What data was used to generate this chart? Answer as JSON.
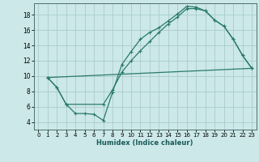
{
  "xlabel": "Humidex (Indice chaleur)",
  "bg_color": "#cce8e8",
  "grid_color": "#aacccc",
  "line_color": "#2a7a6a",
  "xlim": [
    -0.5,
    23.5
  ],
  "ylim": [
    3.0,
    19.5
  ],
  "xticks": [
    0,
    1,
    2,
    3,
    4,
    5,
    6,
    7,
    8,
    9,
    10,
    11,
    12,
    13,
    14,
    15,
    16,
    17,
    18,
    19,
    20,
    21,
    22,
    23
  ],
  "yticks": [
    4,
    6,
    8,
    10,
    12,
    14,
    16,
    18
  ],
  "line1_x": [
    1,
    2,
    3,
    4,
    5,
    6,
    7,
    8,
    9,
    10,
    11,
    12,
    13,
    14,
    15,
    16,
    17,
    18,
    19,
    20,
    21,
    22,
    23
  ],
  "line1_y": [
    9.8,
    8.5,
    6.3,
    5.1,
    5.1,
    5.0,
    4.2,
    7.9,
    11.5,
    13.2,
    14.8,
    15.7,
    16.3,
    17.2,
    18.1,
    19.1,
    19.0,
    18.5,
    17.3,
    16.5,
    14.8,
    12.7,
    11.0
  ],
  "line2_x": [
    1,
    2,
    3,
    7,
    8,
    9,
    10,
    11,
    12,
    13,
    14,
    15,
    16,
    17,
    18,
    19,
    20,
    21,
    22,
    23
  ],
  "line2_y": [
    9.8,
    8.5,
    6.3,
    6.3,
    8.2,
    10.5,
    12.0,
    13.3,
    14.5,
    15.7,
    16.8,
    17.7,
    18.8,
    18.8,
    18.5,
    17.3,
    16.5,
    14.8,
    12.7,
    11.0
  ],
  "line3_x": [
    1,
    23
  ],
  "line3_y": [
    9.8,
    11.0
  ]
}
